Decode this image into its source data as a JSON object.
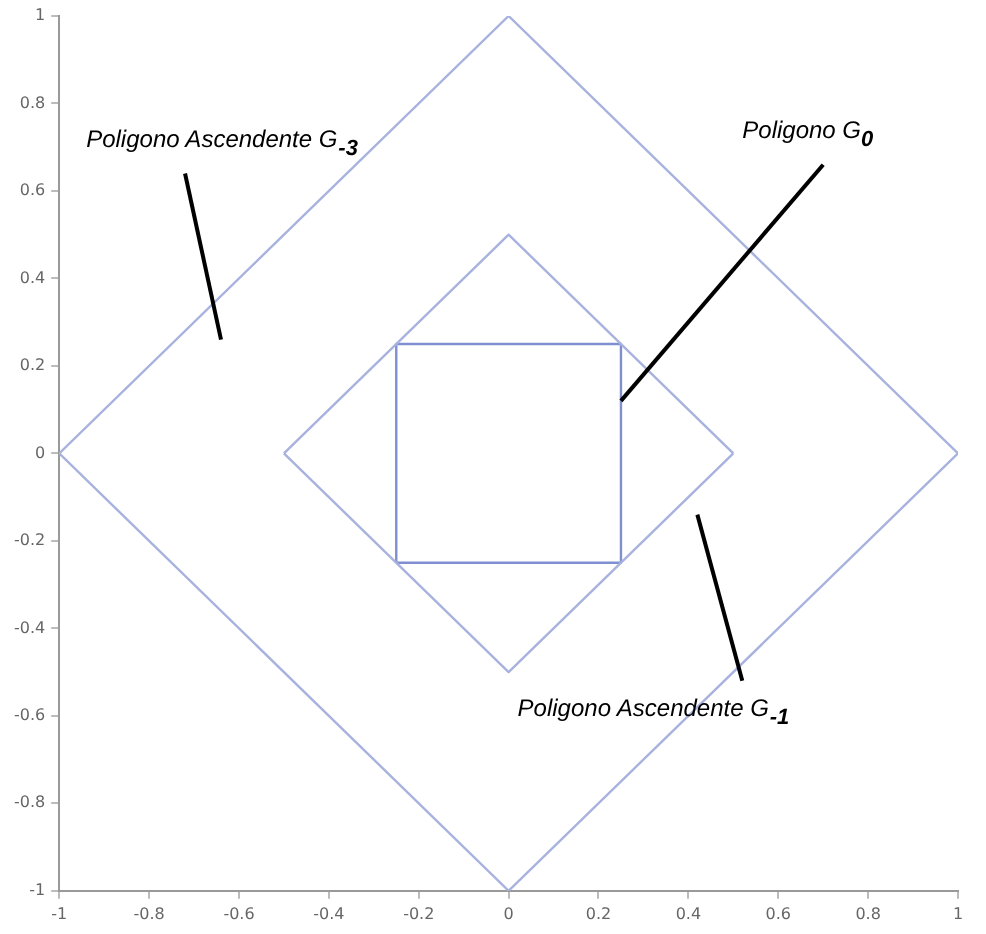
{
  "chart_data": {
    "type": "line",
    "marker": "none",
    "grid": false,
    "legend": false,
    "xlim": [
      -1,
      1
    ],
    "ylim": [
      -1,
      1
    ],
    "xticks": [
      -1,
      -0.8,
      -0.6,
      -0.4,
      -0.2,
      0,
      0.2,
      0.4,
      0.6,
      0.8,
      1
    ],
    "yticks": [
      -1,
      -0.8,
      -0.6,
      -0.4,
      -0.2,
      0,
      0.2,
      0.4,
      0.6,
      0.8,
      1
    ],
    "series": [
      {
        "color": "#a8b2de",
        "x": [
          -1,
          0,
          1
        ],
        "values": [
          0,
          1,
          0
        ]
      },
      {
        "color": "#a8b2de",
        "x": [
          -1,
          0,
          1
        ],
        "values": [
          0,
          -1,
          0
        ]
      },
      {
        "color": "#a8b2de",
        "x": [
          -0.5,
          0,
          0.5
        ],
        "values": [
          0,
          0.5,
          0
        ]
      },
      {
        "color": "#a8b2de",
        "x": [
          -0.5,
          0,
          0.5
        ],
        "values": [
          0,
          -0.5,
          0
        ]
      },
      {
        "color": "#7f8fd0",
        "x": [
          -0.25,
          -0.25,
          0.25,
          0.25
        ],
        "values": [
          -0.25,
          0.25,
          0.25,
          -0.25
        ]
      },
      {
        "color": "#7f8fd0",
        "x": [
          -0.25,
          0.25
        ],
        "values": [
          -0.25,
          -0.25
        ]
      }
    ],
    "annotations": [
      "Poligono Ascendente G$_{-3}$",
      {
        "text": "Poligono G$_{0}$",
        "x": 0.25,
        "y": 0.12
      },
      "Poligono Ascendente G$_{-1}$"
    ]
  }
}
